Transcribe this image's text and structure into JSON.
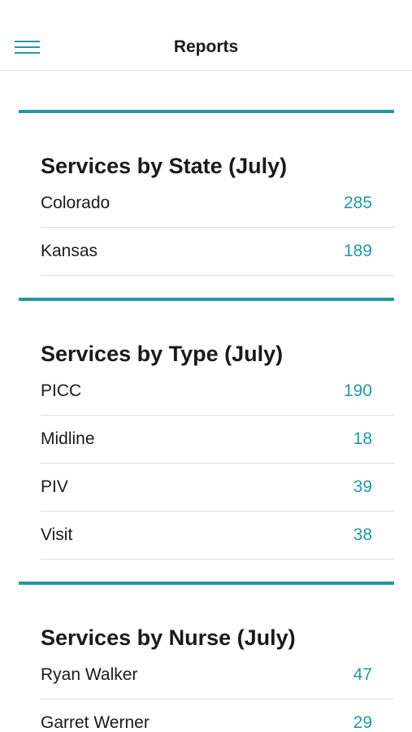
{
  "header": {
    "title": "Reports"
  },
  "sections": [
    {
      "title": "Services by State (July)",
      "rows": [
        {
          "label": "Colorado",
          "value": 285
        },
        {
          "label": "Kansas",
          "value": 189
        }
      ]
    },
    {
      "title": "Services by Type (July)",
      "rows": [
        {
          "label": "PICC",
          "value": 190
        },
        {
          "label": "Midline",
          "value": 18
        },
        {
          "label": "PIV",
          "value": 39
        },
        {
          "label": "Visit",
          "value": 38
        }
      ]
    },
    {
      "title": "Services by Nurse (July)",
      "rows": [
        {
          "label": "Ryan Walker",
          "value": 47
        },
        {
          "label": "Garret Werner",
          "value": 29
        }
      ]
    }
  ]
}
